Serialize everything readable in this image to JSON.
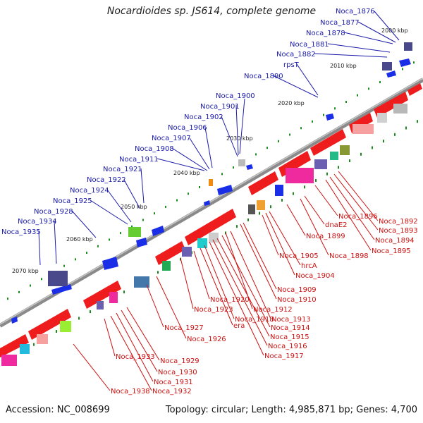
{
  "title": "Nocardioides sp. JS614, complete genome",
  "accession": "Accession: NC_008699",
  "summary": "Topology: circular; Length: 4,985,871 bp; Genes: 4,700",
  "colors": {
    "backbone": "#8a8a8a",
    "upper_label": "#1a1aaa",
    "lower_label": "#cc1111",
    "forward_gene": "#1a2ee8",
    "reverse_gene": "#ee1c1c",
    "tick": "#1e8a1e",
    "kbp_text": "#222222"
  },
  "kbp_markers": [
    "2000 kbp",
    "2010 kbp",
    "2020 kbp",
    "2030 kbp",
    "2040 kbp",
    "2050 kbp",
    "2060 kbp",
    "2070 kbp"
  ],
  "upper_labels": [
    "Noca_1876",
    "Noca_1877",
    "Noca_1878",
    "Noca_1881",
    "Noca_1882",
    "rpsT",
    "Noca_1890",
    "Noca_1900",
    "Noca_1901",
    "Noca_1902",
    "Noca_1906",
    "Noca_1907",
    "Noca_1908",
    "Noca_1911",
    "Noca_1921",
    "Noca_1922",
    "Noca_1924",
    "Noca_1925",
    "Noca_1928",
    "Noca_1934",
    "Noca_1935"
  ],
  "lower_labels": [
    "Noca_1892",
    "Noca_1893",
    "Noca_1894",
    "Noca_1895",
    "Noca_1896",
    "dnaE2",
    "Noca_1899",
    "Noca_1898",
    "Noca_1905",
    "hrcA",
    "Noca_1904",
    "Noca_1909",
    "Noca_1910",
    "Noca_1912",
    "Noca_1913",
    "Noca_1914",
    "Noca_1915",
    "Noca_1916",
    "Noca_1917",
    "Noca_1918",
    "era",
    "Noca_1920",
    "Noca_1923",
    "Noca_1926",
    "Noca_1927",
    "Noca_1929",
    "Noca_1930",
    "Noca_1931",
    "Noca_1932",
    "Noca_1933",
    "Noca_1938"
  ]
}
